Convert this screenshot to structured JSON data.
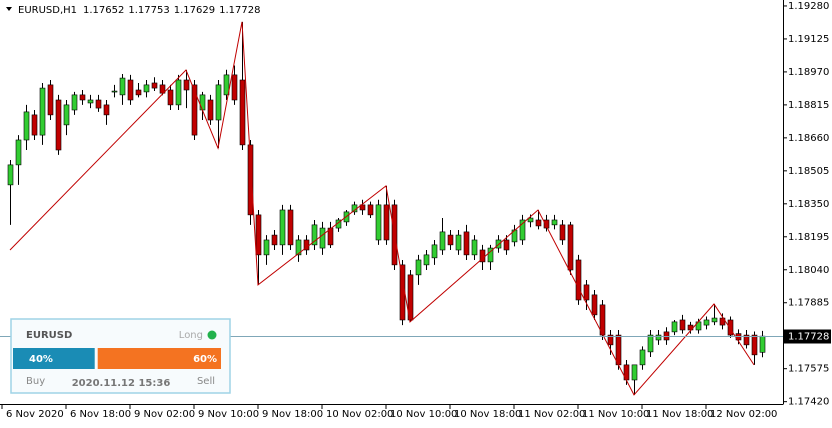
{
  "chart_data": {
    "type": "candlestick",
    "symbol": "EURUSD,H1",
    "up_color": "#32cd32",
    "down_color": "#c00000",
    "wick_color": "#000000",
    "candles": {
      "open": [
        1.18439,
        1.18533,
        1.1865,
        1.18768,
        1.18673,
        1.18909,
        1.18838,
        1.18721,
        1.18791,
        1.18862,
        1.18824,
        1.18838,
        1.18815,
        1.18876,
        1.18862,
        1.18932,
        1.18885,
        1.18876,
        1.18918,
        1.18909,
        1.18885,
        1.18815,
        1.18932,
        1.18909,
        1.18791,
        1.18838,
        1.18744,
        1.18862,
        1.18956,
        1.18932,
        1.18627,
        1.18298,
        1.1811,
        1.18203,
        1.18157,
        1.18321,
        1.1811,
        1.1818,
        1.18157,
        1.18142,
        1.18236,
        1.18236,
        1.18265,
        1.18312,
        1.18345,
        1.18345,
        1.1818,
        1.18345,
        1.18345,
        1.18063,
        1.18016,
        1.18016,
        1.18063,
        1.18096,
        1.18133,
        1.18203,
        1.18133,
        1.18218,
        1.1811,
        1.18133,
        1.18077,
        1.18142,
        1.1818,
        1.18171,
        1.1818,
        1.18265,
        1.18274,
        1.18274,
        1.18251,
        1.18251,
        1.18251,
        1.18086,
        1.17969,
        1.17922,
        1.17875,
        1.17733,
        1.17733,
        1.17593,
        1.17522,
        1.17593,
        1.17654,
        1.1771,
        1.17748,
        1.17748,
        1.17804,
        1.1778,
        1.17757,
        1.1778,
        1.17795,
        1.17813,
        1.17804,
        1.1774,
        1.17733,
        1.17733,
        1.17652
      ],
      "high": [
        1.18556,
        1.18673,
        1.18815,
        1.18791,
        1.18918,
        1.18932,
        1.18862,
        1.18838,
        1.18876,
        1.18885,
        1.18862,
        1.18862,
        1.18838,
        1.18909,
        1.1896,
        1.18956,
        1.18918,
        1.18932,
        1.18945,
        1.18932,
        1.18909,
        1.18956,
        1.18979,
        1.18932,
        1.18876,
        1.18862,
        1.18932,
        1.1898,
        1.19,
        1.19205,
        1.1865,
        1.18321,
        1.18203,
        1.18227,
        1.18345,
        1.18345,
        1.18203,
        1.18203,
        1.18274,
        1.18265,
        1.18265,
        1.18283,
        1.18321,
        1.1836,
        1.18369,
        1.1836,
        1.18369,
        1.18434,
        1.18369,
        1.18086,
        1.18039,
        1.1811,
        1.18133,
        1.1818,
        1.18283,
        1.18227,
        1.18227,
        1.18251,
        1.18203,
        1.18157,
        1.18157,
        1.18203,
        1.18203,
        1.18251,
        1.18298,
        1.183,
        1.18321,
        1.18298,
        1.18298,
        1.18274,
        1.18265,
        1.1811,
        1.17992,
        1.17945,
        1.17898,
        1.17757,
        1.17757,
        1.17616,
        1.1758,
        1.1768,
        1.17757,
        1.17757,
        1.1777,
        1.17804,
        1.17828,
        1.17795,
        1.1781,
        1.1782,
        1.17879,
        1.17835,
        1.1782,
        1.1776,
        1.17757,
        1.1775,
        1.17753
      ],
      "low": [
        1.18251,
        1.18439,
        1.18603,
        1.1865,
        1.18627,
        1.18744,
        1.1858,
        1.18673,
        1.18768,
        1.18815,
        1.188,
        1.18782,
        1.18721,
        1.1885,
        1.18815,
        1.18815,
        1.1885,
        1.1885,
        1.1888,
        1.1886,
        1.18791,
        1.18791,
        1.188,
        1.1865,
        1.18744,
        1.18721,
        1.18612,
        1.18838,
        1.18815,
        1.18603,
        1.18251,
        1.17969,
        1.18063,
        1.18133,
        1.1811,
        1.18133,
        1.18077,
        1.1811,
        1.18133,
        1.1811,
        1.18142,
        1.18218,
        1.18246,
        1.18298,
        1.18298,
        1.18283,
        1.18157,
        1.18157,
        1.18039,
        1.1778,
        1.17795,
        1.17969,
        1.18039,
        1.18063,
        1.1811,
        1.18133,
        1.1811,
        1.18086,
        1.18086,
        1.18039,
        1.18039,
        1.1812,
        1.1811,
        1.1815,
        1.18157,
        1.1824,
        1.1823,
        1.1822,
        1.1823,
        1.18157,
        1.18016,
        1.17875,
        1.17851,
        1.17804,
        1.1771,
        1.1764,
        1.1757,
        1.17499,
        1.17452,
        1.1757,
        1.1763,
        1.17687,
        1.17687,
        1.17733,
        1.1774,
        1.1774,
        1.1774,
        1.1776,
        1.1778,
        1.1776,
        1.1772,
        1.1769,
        1.1767,
        1.17593,
        1.17629
      ],
      "close": [
        1.18533,
        1.1865,
        1.18782,
        1.18673,
        1.18894,
        1.18768,
        1.18603,
        1.18815,
        1.18862,
        1.18838,
        1.18838,
        1.188,
        1.18768,
        1.1888,
        1.18941,
        1.18838,
        1.18862,
        1.18909,
        1.18894,
        1.1887,
        1.18815,
        1.18932,
        1.18885,
        1.18673,
        1.18862,
        1.18744,
        1.18909,
        1.18956,
        1.18838,
        1.18627,
        1.18298,
        1.1811,
        1.1818,
        1.18157,
        1.18321,
        1.18157,
        1.1818,
        1.18133,
        1.18251,
        1.18236,
        1.18157,
        1.18274,
        1.18312,
        1.18345,
        1.18321,
        1.18298,
        1.18345,
        1.1818,
        1.18063,
        1.17804,
        1.17804,
        1.18086,
        1.1811,
        1.18157,
        1.18218,
        1.18157,
        1.18203,
        1.1811,
        1.1818,
        1.18077,
        1.18142,
        1.1818,
        1.18133,
        1.18227,
        1.18274,
        1.18283,
        1.18246,
        1.18236,
        1.18274,
        1.1818,
        1.18039,
        1.17898,
        1.17898,
        1.17828,
        1.17733,
        1.17687,
        1.17593,
        1.17522,
        1.17593,
        1.17663,
        1.17733,
        1.17733,
        1.1771,
        1.17795,
        1.17757,
        1.17757,
        1.17795,
        1.17804,
        1.17813,
        1.1778,
        1.17733,
        1.1771,
        1.17687,
        1.1764,
        1.17728
      ]
    },
    "zigzag": {
      "color": "#c00000",
      "x": [
        0,
        22,
        26,
        29,
        31,
        47,
        50,
        66,
        78,
        88,
        93
      ],
      "values": [
        1.18133,
        1.18979,
        1.18612,
        1.19205,
        1.17969,
        1.18434,
        1.17795,
        1.18321,
        1.17452,
        1.17879,
        1.17593
      ]
    },
    "current_price": 1.17728,
    "current_color": "#7fa7b8",
    "xlim": [
      -1.25,
      96.625
    ],
    "xticks": [
      {
        "value": -1,
        "label": "6 Nov 2020"
      },
      {
        "value": 7,
        "label": "6 Nov 18:00"
      },
      {
        "value": 15,
        "label": "9 Nov 02:00"
      },
      {
        "value": 23,
        "label": "9 Nov 10:00"
      },
      {
        "value": 31,
        "label": "9 Nov 18:00"
      },
      {
        "value": 39,
        "label": "10 Nov 02:00"
      },
      {
        "value": 47,
        "label": "10 Nov 10:00"
      },
      {
        "value": 55,
        "label": "10 Nov 18:00"
      },
      {
        "value": 63,
        "label": "11 Nov 02:00"
      },
      {
        "value": 71,
        "label": "11 Nov 10:00"
      },
      {
        "value": 79,
        "label": "11 Nov 18:00"
      },
      {
        "value": 87,
        "label": "12 Nov 02:00"
      }
    ],
    "ylim": [
      1.17409,
      1.19308
    ],
    "yticks": [
      {
        "value": 1.1928,
        "label": "1.19280"
      },
      {
        "value": 1.19125,
        "label": "1.19125"
      },
      {
        "value": 1.1897,
        "label": "1.18970"
      },
      {
        "value": 1.18815,
        "label": "1.18815"
      },
      {
        "value": 1.1866,
        "label": "1.18660"
      },
      {
        "value": 1.18505,
        "label": "1.18505"
      },
      {
        "value": 1.1835,
        "label": "1.18350"
      },
      {
        "value": 1.18195,
        "label": "1.18195"
      },
      {
        "value": 1.1804,
        "label": "1.18040"
      },
      {
        "value": 1.17885,
        "label": "1.17885"
      },
      {
        "value": 1.17575,
        "label": "1.17575"
      },
      {
        "value": 1.1742,
        "label": "1.17420"
      }
    ],
    "panel": {
      "symbol": "EURUSD",
      "direction": "Long",
      "direction_color": "#22b14c",
      "buy_color": "#1a8cb5",
      "sell_color": "#f47321",
      "buy_percent": 40,
      "sell_percent": 60,
      "value_labels": [
        "40%",
        "60%"
      ],
      "buy_label": "Buy",
      "sell_label": "Sell",
      "timestamp": "2020.11.12 15:36"
    }
  }
}
